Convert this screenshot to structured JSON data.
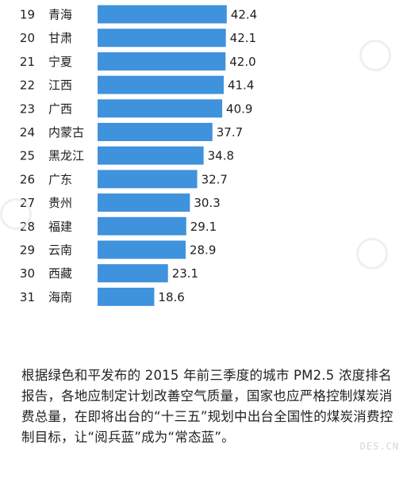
{
  "chart_data": {
    "type": "bar",
    "orientation": "horizontal",
    "ranks": [
      "19",
      "20",
      "21",
      "22",
      "23",
      "24",
      "25",
      "26",
      "27",
      "28",
      "29",
      "30",
      "31"
    ],
    "categories": [
      "青海",
      "甘肃",
      "宁夏",
      "江西",
      "广西",
      "内蒙古",
      "黑龙江",
      "广东",
      "贵州",
      "福建",
      "云南",
      "西藏",
      "海南"
    ],
    "values": [
      42.4,
      42.1,
      42.0,
      41.4,
      40.9,
      37.7,
      34.8,
      32.7,
      30.3,
      29.1,
      28.9,
      23.1,
      18.6
    ],
    "value_labels": [
      "42.4",
      "42.1",
      "42.0",
      "41.4",
      "40.9",
      "37.7",
      "34.8",
      "32.7",
      "30.3",
      "29.1",
      "28.9",
      "23.1",
      "18.6"
    ],
    "title": "",
    "xlabel": "",
    "ylabel": "",
    "grid": false,
    "bar_color": "#3f92dc"
  },
  "caption": {
    "text": "根据绿色和平发布的 2015 年前三季度的城市 PM2.5 浓度排名报告，各地应制定计划改善空气质量，国家也应严格控制煤炭消费总量，在即将出台的“十三五”规划中出台全国性的煤炭消费控制目标，让“阅兵蓝”成为“常态蓝”。"
  },
  "watermark": {
    "text": "DES.CN"
  }
}
